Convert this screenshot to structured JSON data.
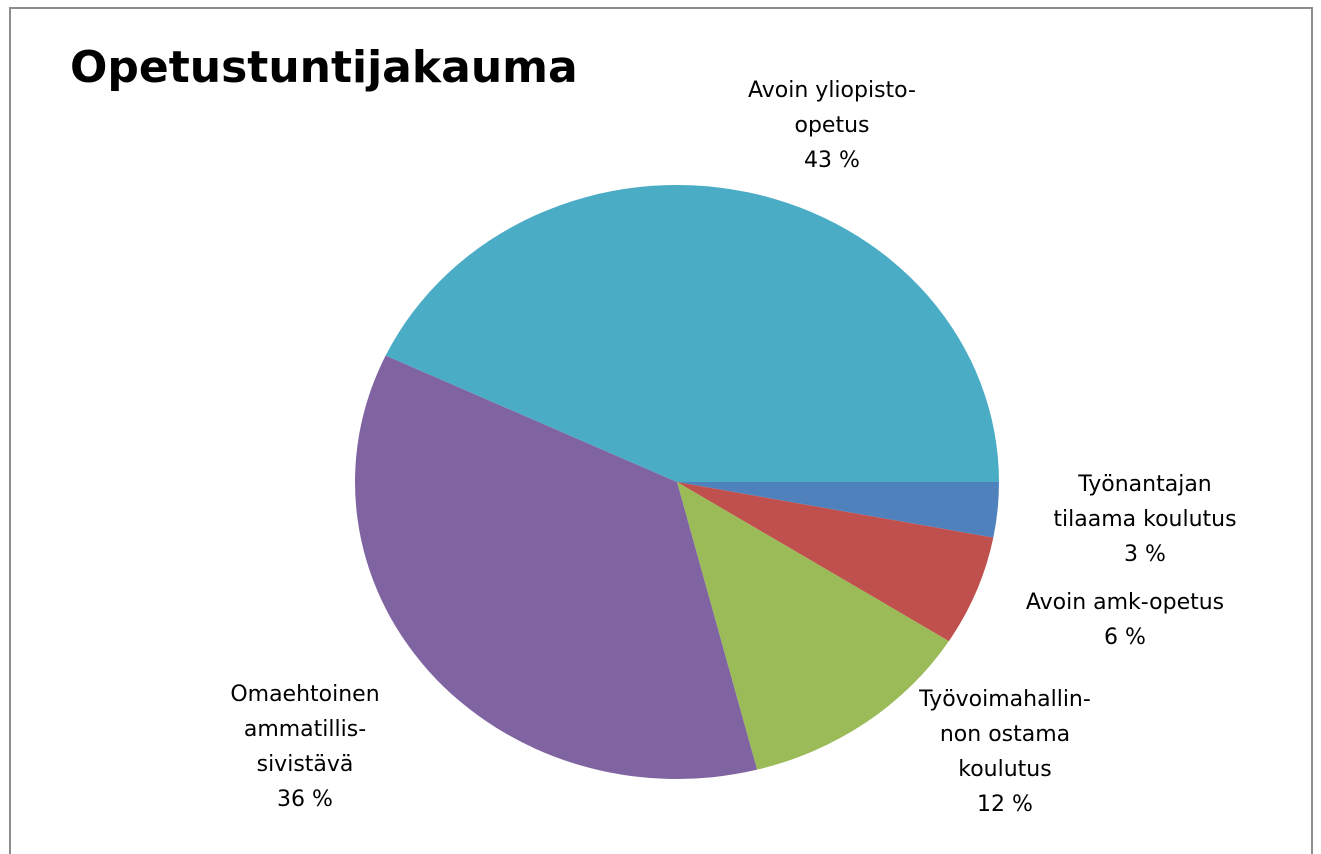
{
  "chart_data": {
    "type": "pie",
    "title": "Opetustuntijakauma",
    "categories": [
      "Työnantajan\ntilaama koulutus",
      "Avoin amk-opetus",
      "Työvoimahallin-\nnon ostama\nkoulutus",
      "Omaehtoinen\nammatillis-\nsivistävä",
      "Avoin yliopisto-\nopetus"
    ],
    "values": [
      3,
      6,
      12,
      36,
      43
    ],
    "value_labels": [
      "3 %",
      "6 %",
      "12 %",
      "36 %",
      "43 %"
    ],
    "colors": [
      "#4f81bd",
      "#c0504d",
      "#9bbb59",
      "#8064a2",
      "#4bacc6"
    ]
  }
}
